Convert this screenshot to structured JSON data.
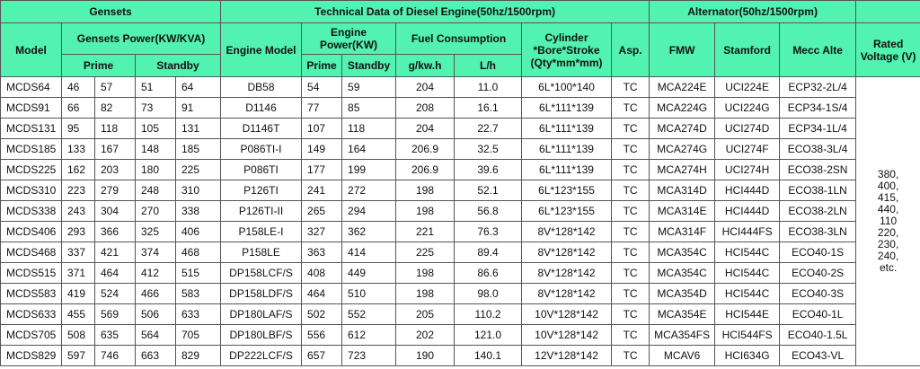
{
  "header": {
    "gensets": "Gensets",
    "technical": "Technical Data of Diesel Engine(50hz/1500rpm)",
    "alternator": "Alternator(50hz/1500rpm)",
    "model": "Model",
    "gensets_power": "Gensets Power(KW/KVA)",
    "engine_model": "Engine Model",
    "engine_power": "Engine Power(KW)",
    "fuel": "Fuel Consumption",
    "cylinder": "Cylinder *Bore*Stroke (Qty*mm*mm)",
    "asp": "Asp.",
    "fmw": "FMW",
    "stamford": "Stamford",
    "mecc": "Mecc Alte",
    "voltage": "Rated Voltage (V)",
    "prime": "Prime",
    "standby": "Standby",
    "ep_prime": "Prime",
    "ep_standby": "Standby",
    "gkwh": "g/kw.h",
    "lh": "L/h"
  },
  "rows": [
    [
      "MCDS64",
      "46",
      "57",
      "51",
      "64",
      "DB58",
      "54",
      "59",
      "204",
      "11.0",
      "6L*100*140",
      "TC",
      "MCA224E",
      "UCI224E",
      "ECP32-2L/4"
    ],
    [
      "MCDS91",
      "66",
      "82",
      "73",
      "91",
      "D1146",
      "77",
      "85",
      "208",
      "16.1",
      "6L*111*139",
      "TC",
      "MCA224G",
      "UCI224G",
      "ECP34-1S/4"
    ],
    [
      "MCDS131",
      "95",
      "118",
      "105",
      "131",
      "D1146T",
      "107",
      "118",
      "204",
      "22.7",
      "6L*111*139",
      "TC",
      "MCA274D",
      "UCI274D",
      "ECP34-1L/4"
    ],
    [
      "MCDS185",
      "133",
      "167",
      "148",
      "185",
      "P086TI-I",
      "149",
      "164",
      "206.9",
      "32.5",
      "6L*111*139",
      "TC",
      "MCA274G",
      "UCI274F",
      "ECO38-3L/4"
    ],
    [
      "MCDS225",
      "162",
      "203",
      "180",
      "225",
      "P086TI",
      "177",
      "199",
      "206.9",
      "39.6",
      "6L*111*139",
      "TC",
      "MCA274H",
      "UCI274H",
      "ECO38-2SN"
    ],
    [
      "MCDS310",
      "223",
      "279",
      "248",
      "310",
      "P126TI",
      "241",
      "272",
      "198",
      "52.1",
      "6L*123*155",
      "TC",
      "MCA314D",
      "HCI444D",
      "ECO38-1LN"
    ],
    [
      "MCDS338",
      "243",
      "304",
      "270",
      "338",
      "P126TI-II",
      "265",
      "294",
      "198",
      "56.8",
      "6L*123*155",
      "TC",
      "MCA314E",
      "HCI444D",
      "ECO38-2LN"
    ],
    [
      "MCDS406",
      "293",
      "366",
      "325",
      "406",
      "P158LE-I",
      "327",
      "362",
      "221",
      "76.3",
      "8V*128*142",
      "TC",
      "MCA314F",
      "HCI444FS",
      "ECO38-3LN"
    ],
    [
      "MCDS468",
      "337",
      "421",
      "374",
      "468",
      "P158LE",
      "363",
      "414",
      "225",
      "89.4",
      "8V*128*142",
      "TC",
      "MCA354C",
      "HCI544C",
      "ECO40-1S"
    ],
    [
      "MCDS515",
      "371",
      "464",
      "412",
      "515",
      "DP158LCF/S",
      "408",
      "449",
      "198",
      "86.6",
      "8V*128*142",
      "TC",
      "MCA354C",
      "HCI544C",
      "ECO40-2S"
    ],
    [
      "MCDS583",
      "419",
      "524",
      "466",
      "583",
      "DP158LDF/S",
      "464",
      "510",
      "198",
      "98.0",
      "8V*128*142",
      "TC",
      "MCA354D",
      "HCI544C",
      "ECO40-3S"
    ],
    [
      "MCDS633",
      "455",
      "569",
      "506",
      "633",
      "DP180LAF/S",
      "502",
      "552",
      "205",
      "110.2",
      "10V*128*142",
      "TC",
      "MCA354E",
      "HCI544E",
      "ECO40-1L"
    ],
    [
      "MCDS705",
      "508",
      "635",
      "564",
      "705",
      "DP180LBF/S",
      "556",
      "612",
      "202",
      "121.0",
      "10V*128*142",
      "TC",
      "MCA354FS",
      "HCI544FS",
      "ECO40-1.5L"
    ],
    [
      "MCDS829",
      "597",
      "746",
      "663",
      "829",
      "DP222LCF/S",
      "657",
      "723",
      "190",
      "140.1",
      "12V*128*142",
      "TC",
      "MCAV6",
      "HCI634G",
      "ECO43-VL"
    ]
  ],
  "rated_voltage": [
    "380,",
    "400,",
    "415,",
    "440,",
    "110",
    "220,",
    "230,",
    "240,",
    "etc."
  ]
}
